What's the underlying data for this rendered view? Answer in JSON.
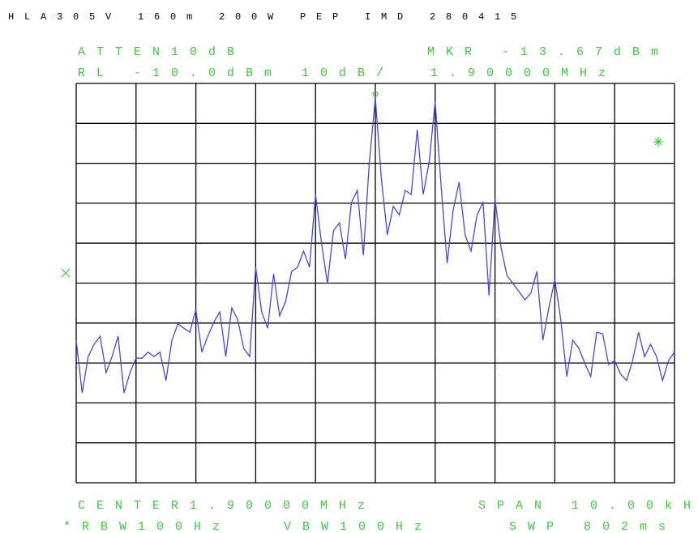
{
  "header": {
    "title": "HLA305V 160m 200W PEP IMD 280415",
    "atten": "ATTEN10dB",
    "ref_level": "RL -10.0dBm",
    "scale": "10dB/"
  },
  "footer": {
    "center": "CENTER1.90000MHz",
    "span": "SPAN 10.00kHz",
    "rbw": "*RBW100Hz",
    "vbw": "VBW100Hz",
    "sweep": "SWP 802ms"
  },
  "chart_data": {
    "type": "line",
    "color": "#4646e0",
    "marker": {
      "label": "MKR -13.67dBm",
      "x_label": "1.90000MHz",
      "x": 1.9,
      "y": -13.67
    },
    "xlim": [
      1.895,
      1.905
    ],
    "ylim": [
      -110,
      -10
    ],
    "xticks": [
      1.895,
      1.896,
      1.897,
      1.898,
      1.899,
      1.9,
      1.901,
      1.902,
      1.903,
      1.904,
      1.905
    ],
    "yticks": [
      -110,
      -100,
      -90,
      -80,
      -70,
      -60,
      -50,
      -40,
      -30,
      -20,
      -10
    ],
    "x": [
      1.895,
      1.8951,
      1.8952,
      1.8953,
      1.8954,
      1.8955,
      1.8956,
      1.8957,
      1.8958,
      1.8959,
      1.896,
      1.8961,
      1.8962,
      1.8963,
      1.8964,
      1.8965,
      1.8966,
      1.8967,
      1.8968,
      1.8969,
      1.897,
      1.8971,
      1.8972,
      1.8973,
      1.8974,
      1.8975,
      1.8976,
      1.8977,
      1.8978,
      1.8979,
      1.898,
      1.8981,
      1.8982,
      1.8983,
      1.8984,
      1.8985,
      1.8986,
      1.8987,
      1.8988,
      1.8989,
      1.899,
      1.8991,
      1.8992,
      1.8993,
      1.8994,
      1.8995,
      1.8996,
      1.8997,
      1.8998,
      1.8999,
      1.9,
      1.9001,
      1.9002,
      1.9003,
      1.9004,
      1.9005,
      1.9006,
      1.9007,
      1.9008,
      1.9009,
      1.901,
      1.9011,
      1.9012,
      1.9013,
      1.9014,
      1.9015,
      1.9016,
      1.9017,
      1.9018,
      1.9019,
      1.902,
      1.9021,
      1.9022,
      1.9023,
      1.9024,
      1.9025,
      1.9026,
      1.9027,
      1.9028,
      1.9029,
      1.903,
      1.9031,
      1.9032,
      1.9033,
      1.9034,
      1.9035,
      1.9036,
      1.9037,
      1.9038,
      1.9039,
      1.904,
      1.9041,
      1.9042,
      1.9043,
      1.9044,
      1.9045,
      1.9046,
      1.9047,
      1.9048,
      1.9049,
      1.905
    ],
    "values": [
      -74.3,
      -87.5,
      -78.4,
      -75.3,
      -73.3,
      -82.4,
      -78.4,
      -73.3,
      -87.5,
      -82.4,
      -78.8,
      -78.8,
      -77.3,
      -78.4,
      -77.3,
      -84.4,
      -74.3,
      -70.2,
      -71.3,
      -72.3,
      -66.6,
      -77.3,
      -73.3,
      -69.8,
      -67.2,
      -78.4,
      -66.2,
      -69.2,
      -76.3,
      -78.4,
      -56.0,
      -67.2,
      -71.3,
      -57.7,
      -68.2,
      -64.6,
      -57.1,
      -56.0,
      -52.0,
      -56.0,
      -37.8,
      -50.0,
      -60.1,
      -46.9,
      -44.9,
      -54.0,
      -39.8,
      -36.8,
      -53.0,
      -29.7,
      -13.7,
      -33.7,
      -47.9,
      -40.8,
      -42.9,
      -36.8,
      -37.8,
      -21.6,
      -37.8,
      -29.7,
      -14.5,
      -35.8,
      -55.0,
      -41.8,
      -34.7,
      -47.9,
      -52.0,
      -42.9,
      -39.8,
      -63.1,
      -38.8,
      -51.0,
      -58.1,
      -60.1,
      -62.1,
      -64.2,
      -62.5,
      -57.1,
      -74.3,
      -66.2,
      -59.1,
      -69.2,
      -83.4,
      -74.3,
      -76.3,
      -80.0,
      -83.4,
      -72.3,
      -72.7,
      -80.4,
      -79.4,
      -82.8,
      -84.4,
      -79.4,
      -72.3,
      -78.4,
      -75.3,
      -78.4,
      -84.4,
      -79.4,
      -77.3
    ]
  }
}
